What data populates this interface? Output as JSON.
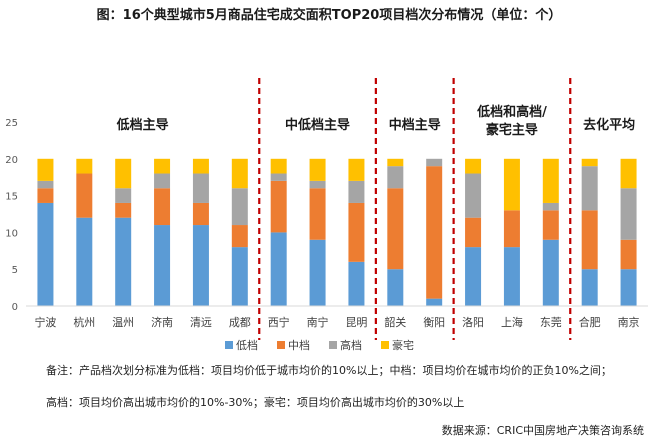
{
  "title": "图：16个典型城市5月商品住宅成交面积TOP20项目档次分布情况（单位：个）",
  "chart_data": {
    "type": "bar",
    "stacked": true,
    "categories": [
      "宁波",
      "杭州",
      "温州",
      "济南",
      "清远",
      "成都",
      "西宁",
      "南宁",
      "昆明",
      "韶关",
      "衡阳",
      "洛阳",
      "上海",
      "东莞",
      "合肥",
      "南京"
    ],
    "series": [
      {
        "name": "低档",
        "color": "#5B9BD5",
        "values": [
          14,
          12,
          12,
          11,
          11,
          8,
          10,
          9,
          6,
          5,
          1,
          8,
          8,
          9,
          5,
          5
        ]
      },
      {
        "name": "中档",
        "color": "#ED7D31",
        "values": [
          2,
          6,
          2,
          5,
          3,
          3,
          7,
          7,
          8,
          11,
          18,
          4,
          5,
          4,
          8,
          4
        ]
      },
      {
        "name": "高档",
        "color": "#A5A5A5",
        "values": [
          1,
          0,
          2,
          2,
          4,
          5,
          1,
          1,
          3,
          3,
          1,
          6,
          0,
          1,
          6,
          7
        ]
      },
      {
        "name": "豪宅",
        "color": "#FFC000",
        "values": [
          3,
          2,
          4,
          2,
          2,
          4,
          2,
          3,
          3,
          1,
          0,
          2,
          7,
          6,
          1,
          4
        ]
      }
    ],
    "ylim": [
      0,
      25
    ],
    "yticks": [
      0,
      5,
      10,
      15,
      20,
      25
    ],
    "legend": "bottom",
    "grid": false,
    "groups": [
      {
        "label": "低档主导",
        "start": 0,
        "end": 5
      },
      {
        "label": "中低档主导",
        "start": 6,
        "end": 8
      },
      {
        "label": "中档主导",
        "start": 9,
        "end": 10
      },
      {
        "label": "低档和高档/豪宅主导",
        "start": 11,
        "end": 13
      },
      {
        "label": "去化平均",
        "start": 14,
        "end": 15
      }
    ],
    "divider_color": "#C00000"
  },
  "notes": {
    "line1": "备注：产品档次划分标准为低档：项目均价低于城市均价的10%以上；中档：项目均价在城市均价的正负10%之间；",
    "line2": "高档：项目均价高出城市均价的10%-30%；豪宅：项目均价高出城市均价的30%以上"
  },
  "source": "数据来源：CRIC中国房地产决策咨询系统"
}
